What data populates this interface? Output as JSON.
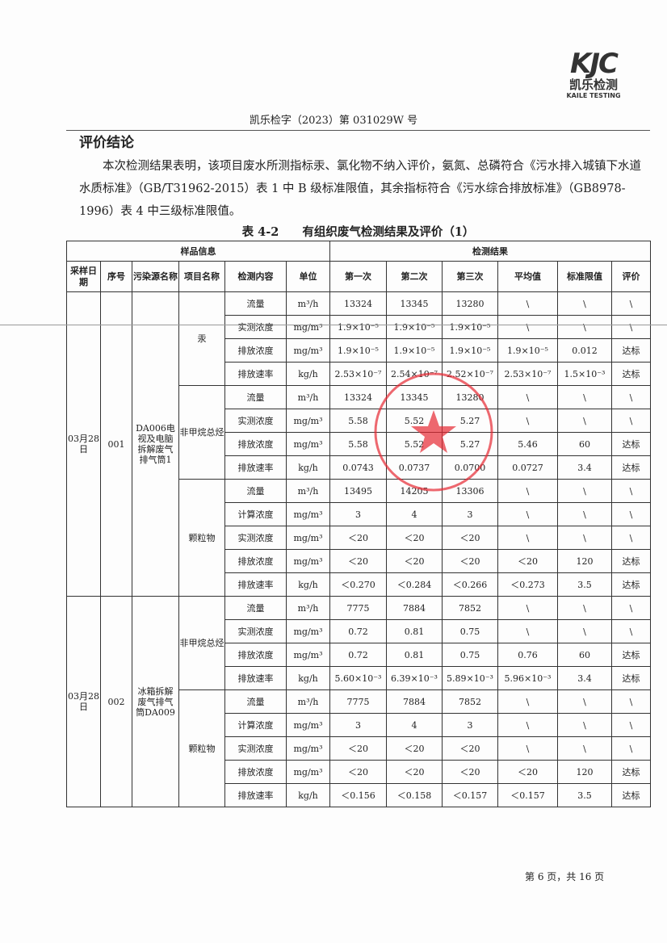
{
  "logo": {
    "mark": "KJC",
    "cn": "凯乐检测",
    "en": "KAILE TESTING"
  },
  "doc_no": "凯乐检字（2023）第 031029W 号",
  "section_title": "评价结论",
  "paragraph": "本次检测结果表明，该项目废水所测指标汞、氯化物不纳入评价，氨氮、总磷符合《污水排入城镇下水道水质标准》（GB/T31962-2015）表 1 中 B 级标准限值，其余指标符合《污水综合排放标准》（GB8978-1996）表 4 中三级标准限值。",
  "table_caption": "表 4-2　　有组织废气检测结果及评价（1）",
  "header": {
    "group1": "样品信息",
    "group2": "检测结果",
    "cols": [
      "采样日期",
      "序号",
      "污染源名称",
      "项目名称",
      "检测内容",
      "单位",
      "第一次",
      "第二次",
      "第三次",
      "平均值",
      "标准限值",
      "评价"
    ]
  },
  "stamp": {
    "top": "四川凯乐检测技术有限公司",
    "bottom": "检验检测专用章"
  },
  "groups": [
    {
      "date": "03月28日",
      "seq": "001",
      "source": "DA006电视及电脑拆解废气排气筒1",
      "items": [
        {
          "name": "汞",
          "rows": [
            [
              "流量",
              "m³/h",
              "13324",
              "13345",
              "13280",
              "\\",
              "\\",
              "\\"
            ],
            [
              "实测浓度",
              "mg/m³",
              "1.9×10⁻⁵",
              "1.9×10⁻⁵",
              "1.9×10⁻⁵",
              "\\",
              "\\",
              "\\"
            ],
            [
              "排放浓度",
              "mg/m³",
              "1.9×10⁻⁵",
              "1.9×10⁻⁵",
              "1.9×10⁻⁵",
              "1.9×10⁻⁵",
              "0.012",
              "达标"
            ],
            [
              "排放速率",
              "kg/h",
              "2.53×10⁻⁷",
              "2.54×10⁻⁷",
              "2.52×10⁻⁷",
              "2.53×10⁻⁷",
              "1.5×10⁻³",
              "达标"
            ]
          ]
        },
        {
          "name": "非甲烷总烃",
          "rows": [
            [
              "流量",
              "m³/h",
              "13324",
              "13345",
              "13280",
              "\\",
              "\\",
              "\\"
            ],
            [
              "实测浓度",
              "mg/m³",
              "5.58",
              "5.52",
              "5.27",
              "\\",
              "\\",
              "\\"
            ],
            [
              "排放浓度",
              "mg/m³",
              "5.58",
              "5.52",
              "5.27",
              "5.46",
              "60",
              "达标"
            ],
            [
              "排放速率",
              "kg/h",
              "0.0743",
              "0.0737",
              "0.0700",
              "0.0727",
              "3.4",
              "达标"
            ]
          ]
        },
        {
          "name": "颗粒物",
          "rows": [
            [
              "流量",
              "m³/h",
              "13495",
              "14205",
              "13306",
              "\\",
              "\\",
              "\\"
            ],
            [
              "计算浓度",
              "mg/m³",
              "3",
              "4",
              "3",
              "\\",
              "\\",
              "\\"
            ],
            [
              "实测浓度",
              "mg/m³",
              "＜20",
              "＜20",
              "＜20",
              "\\",
              "\\",
              "\\"
            ],
            [
              "排放浓度",
              "mg/m³",
              "＜20",
              "＜20",
              "＜20",
              "＜20",
              "120",
              "达标"
            ],
            [
              "排放速率",
              "kg/h",
              "＜0.270",
              "＜0.284",
              "＜0.266",
              "＜0.273",
              "3.5",
              "达标"
            ]
          ]
        }
      ]
    },
    {
      "date": "03月28日",
      "seq": "002",
      "source": "冰箱拆解废气排气筒DA009",
      "items": [
        {
          "name": "非甲烷总烃",
          "rows": [
            [
              "流量",
              "m³/h",
              "7775",
              "7884",
              "7852",
              "\\",
              "\\",
              "\\"
            ],
            [
              "实测浓度",
              "mg/m³",
              "0.72",
              "0.81",
              "0.75",
              "\\",
              "\\",
              "\\"
            ],
            [
              "排放浓度",
              "mg/m³",
              "0.72",
              "0.81",
              "0.75",
              "0.76",
              "60",
              "达标"
            ],
            [
              "排放速率",
              "kg/h",
              "5.60×10⁻³",
              "6.39×10⁻³",
              "5.89×10⁻³",
              "5.96×10⁻³",
              "3.4",
              "达标"
            ]
          ]
        },
        {
          "name": "颗粒物",
          "rows": [
            [
              "流量",
              "m³/h",
              "7775",
              "7884",
              "7852",
              "\\",
              "\\",
              "\\"
            ],
            [
              "计算浓度",
              "mg/m³",
              "3",
              "4",
              "3",
              "\\",
              "\\",
              "\\"
            ],
            [
              "实测浓度",
              "mg/m³",
              "＜20",
              "＜20",
              "＜20",
              "\\",
              "\\",
              "\\"
            ],
            [
              "排放浓度",
              "mg/m³",
              "＜20",
              "＜20",
              "＜20",
              "＜20",
              "120",
              "达标"
            ],
            [
              "排放速率",
              "kg/h",
              "＜0.156",
              "＜0.158",
              "＜0.157",
              "＜0.157",
              "3.5",
              "达标"
            ]
          ]
        }
      ]
    }
  ],
  "footer": "第 6 页，共 16 页"
}
